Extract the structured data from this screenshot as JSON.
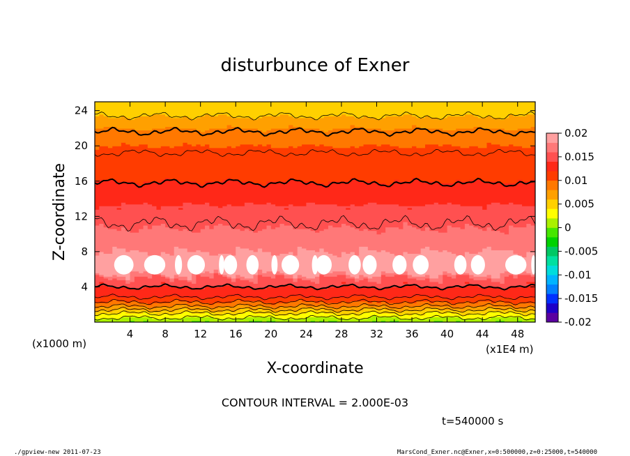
{
  "chart_data": {
    "type": "heatmap",
    "title": "disturbunce of Exner",
    "xlabel": "X-coordinate",
    "ylabel": "Z-coordinate",
    "x_ticks": [
      "4",
      "8",
      "12",
      "16",
      "20",
      "24",
      "28",
      "32",
      "36",
      "40",
      "44",
      "48"
    ],
    "y_ticks": [
      "4",
      "8",
      "12",
      "16",
      "20",
      "24"
    ],
    "x_unit_label": "(x1E4 m)",
    "y_unit_label": "(x1000 m)",
    "xlim": [
      0,
      50
    ],
    "ylim": [
      0,
      25
    ],
    "colorbar": {
      "ticks": [
        "0.02",
        "0.015",
        "0.01",
        "0.005",
        "0",
        "-0.005",
        "-0.01",
        "-0.015",
        "-0.02"
      ],
      "range": [
        -0.02,
        0.02
      ],
      "levels": [
        -0.02,
        -0.018,
        -0.016,
        -0.014,
        -0.012,
        -0.01,
        -0.008,
        -0.006,
        -0.004,
        -0.002,
        0,
        0.002,
        0.004,
        0.006,
        0.008,
        0.01,
        0.012,
        0.014,
        0.016,
        0.018,
        0.02
      ],
      "colors": [
        "#5a00a0",
        "#1e00c8",
        "#0030ff",
        "#0080ff",
        "#00b4ff",
        "#00dcdc",
        "#00e0a0",
        "#00c864",
        "#00d200",
        "#46e600",
        "#aaf000",
        "#ffff00",
        "#ffd000",
        "#ffa000",
        "#ff7800",
        "#ff3c00",
        "#ff2818",
        "#ff5050",
        "#ff7878",
        "#ffa0a0"
      ]
    },
    "contour_interval": "CONTOUR INTERVAL = 2.000E-03",
    "vertical_structure": [
      {
        "z": 0,
        "value": 0.0
      },
      {
        "z": 1,
        "value": 0.004
      },
      {
        "z": 2,
        "value": 0.009
      },
      {
        "z": 3,
        "value": 0.0125
      },
      {
        "z": 4,
        "value": 0.014
      },
      {
        "z": 5,
        "value": 0.016
      },
      {
        "z": 6,
        "value": 0.0205
      },
      {
        "z": 7,
        "value": 0.0205
      },
      {
        "z": 8,
        "value": 0.018
      },
      {
        "z": 10,
        "value": 0.0165
      },
      {
        "z": 12,
        "value": 0.015
      },
      {
        "z": 14,
        "value": 0.0135
      },
      {
        "z": 16,
        "value": 0.012
      },
      {
        "z": 18,
        "value": 0.0105
      },
      {
        "z": 20,
        "value": 0.01
      },
      {
        "z": 22,
        "value": 0.008
      },
      {
        "z": 24,
        "value": 0.005
      },
      {
        "z": 25,
        "value": 0.004
      }
    ]
  },
  "annotations": {
    "time": "t=540000 s",
    "footer_left": "./gpview-new   2011-07-23",
    "footer_right": "MarsCond_Exner.nc@Exner,x=0:500000,z=0:25000,t=540000"
  }
}
